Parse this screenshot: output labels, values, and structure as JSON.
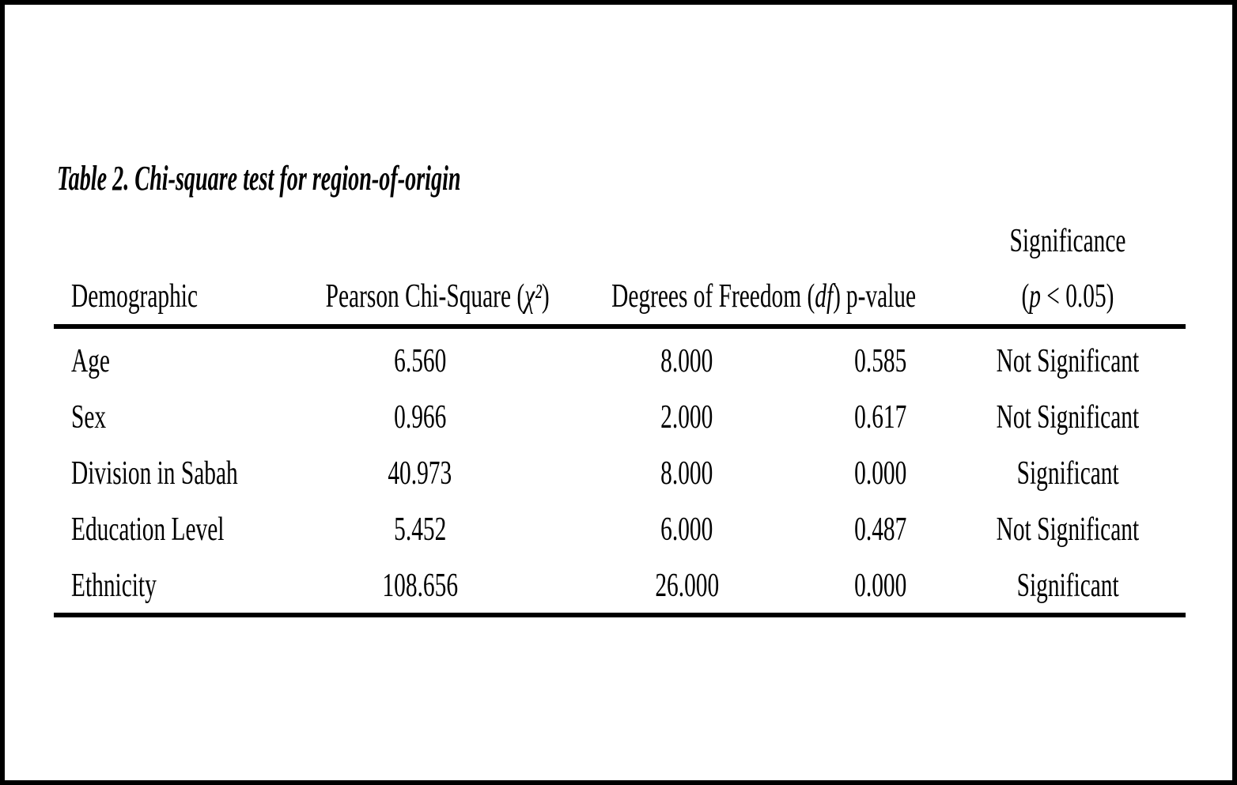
{
  "page": {
    "background_color": "#ffffff",
    "frame_color": "#000000",
    "text_color": "#000000"
  },
  "table": {
    "title": "Table 2. Chi-square test for region-of-origin",
    "columns": {
      "demographic": {
        "label": "Demographic",
        "label_pre": "Demographic",
        "label_italic": "",
        "label_post": ""
      },
      "chi_square": {
        "label": "Pearson Chi-Square (χ²)",
        "label_pre": "Pearson Chi-Square (",
        "label_italic": "χ²",
        "label_post": ")"
      },
      "df": {
        "label": "Degrees of Freedom (df)",
        "label_pre": "Degrees of Freedom (",
        "label_italic": "df",
        "label_post": ")"
      },
      "p_value": {
        "label": "p-value",
        "label_pre": "p-value",
        "label_italic": "",
        "label_post": ""
      },
      "significance": {
        "label": "Significance (p < 0.05)",
        "label_line1": "Significance",
        "label_pre": "(",
        "label_italic": "p",
        "label_post": " < 0.05)"
      }
    },
    "rows": [
      {
        "demographic": "Age",
        "chi_square": "6.560",
        "df": "8.000",
        "p_value": "0.585",
        "significance": "Not Significant"
      },
      {
        "demographic": "Sex",
        "chi_square": "0.966",
        "df": "2.000",
        "p_value": "0.617",
        "significance": "Not Significant"
      },
      {
        "demographic": "Division in Sabah",
        "chi_square": "40.973",
        "df": "8.000",
        "p_value": "0.000",
        "significance": "Significant"
      },
      {
        "demographic": "Education Level",
        "chi_square": "5.452",
        "df": "6.000",
        "p_value": "0.487",
        "significance": "Not Significant"
      },
      {
        "demographic": "Ethnicity",
        "chi_square": "108.656",
        "df": "26.000",
        "p_value": "0.000",
        "significance": "Significant"
      }
    ]
  }
}
